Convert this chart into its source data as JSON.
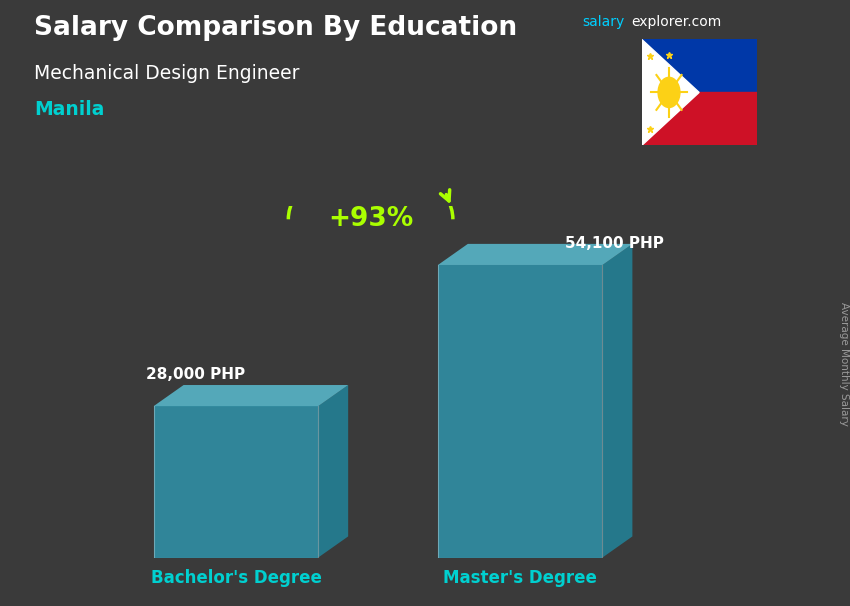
{
  "title_part1": "Salary Comparison By Education",
  "subtitle": "Mechanical Design Engineer",
  "city": "Manila",
  "ylabel": "Average Monthly Salary",
  "categories": [
    "Bachelor's Degree",
    "Master's Degree"
  ],
  "values": [
    28000,
    54100
  ],
  "value_labels": [
    "28,000 PHP",
    "54,100 PHP"
  ],
  "pct_change": "+93%",
  "bar_color_face": "#29c4e8",
  "bar_color_side": "#1a9ab8",
  "bar_color_top": "#60d8f0",
  "bar_alpha": 0.55,
  "background_color": "#3a3a3a",
  "title_color": "#ffffff",
  "subtitle_color": "#ffffff",
  "city_color": "#00d0d0",
  "label_color": "#ffffff",
  "xticklabel_color": "#00d0d0",
  "pct_color": "#aaff00",
  "watermark_salary": "salary",
  "watermark_explorer": "explorer",
  "watermark_com": ".com",
  "watermark_color_salary": "#00cfff",
  "watermark_color_rest": "#ffffff",
  "ylabel_color": "#aaaaaa",
  "flag_border_color": "#888888"
}
